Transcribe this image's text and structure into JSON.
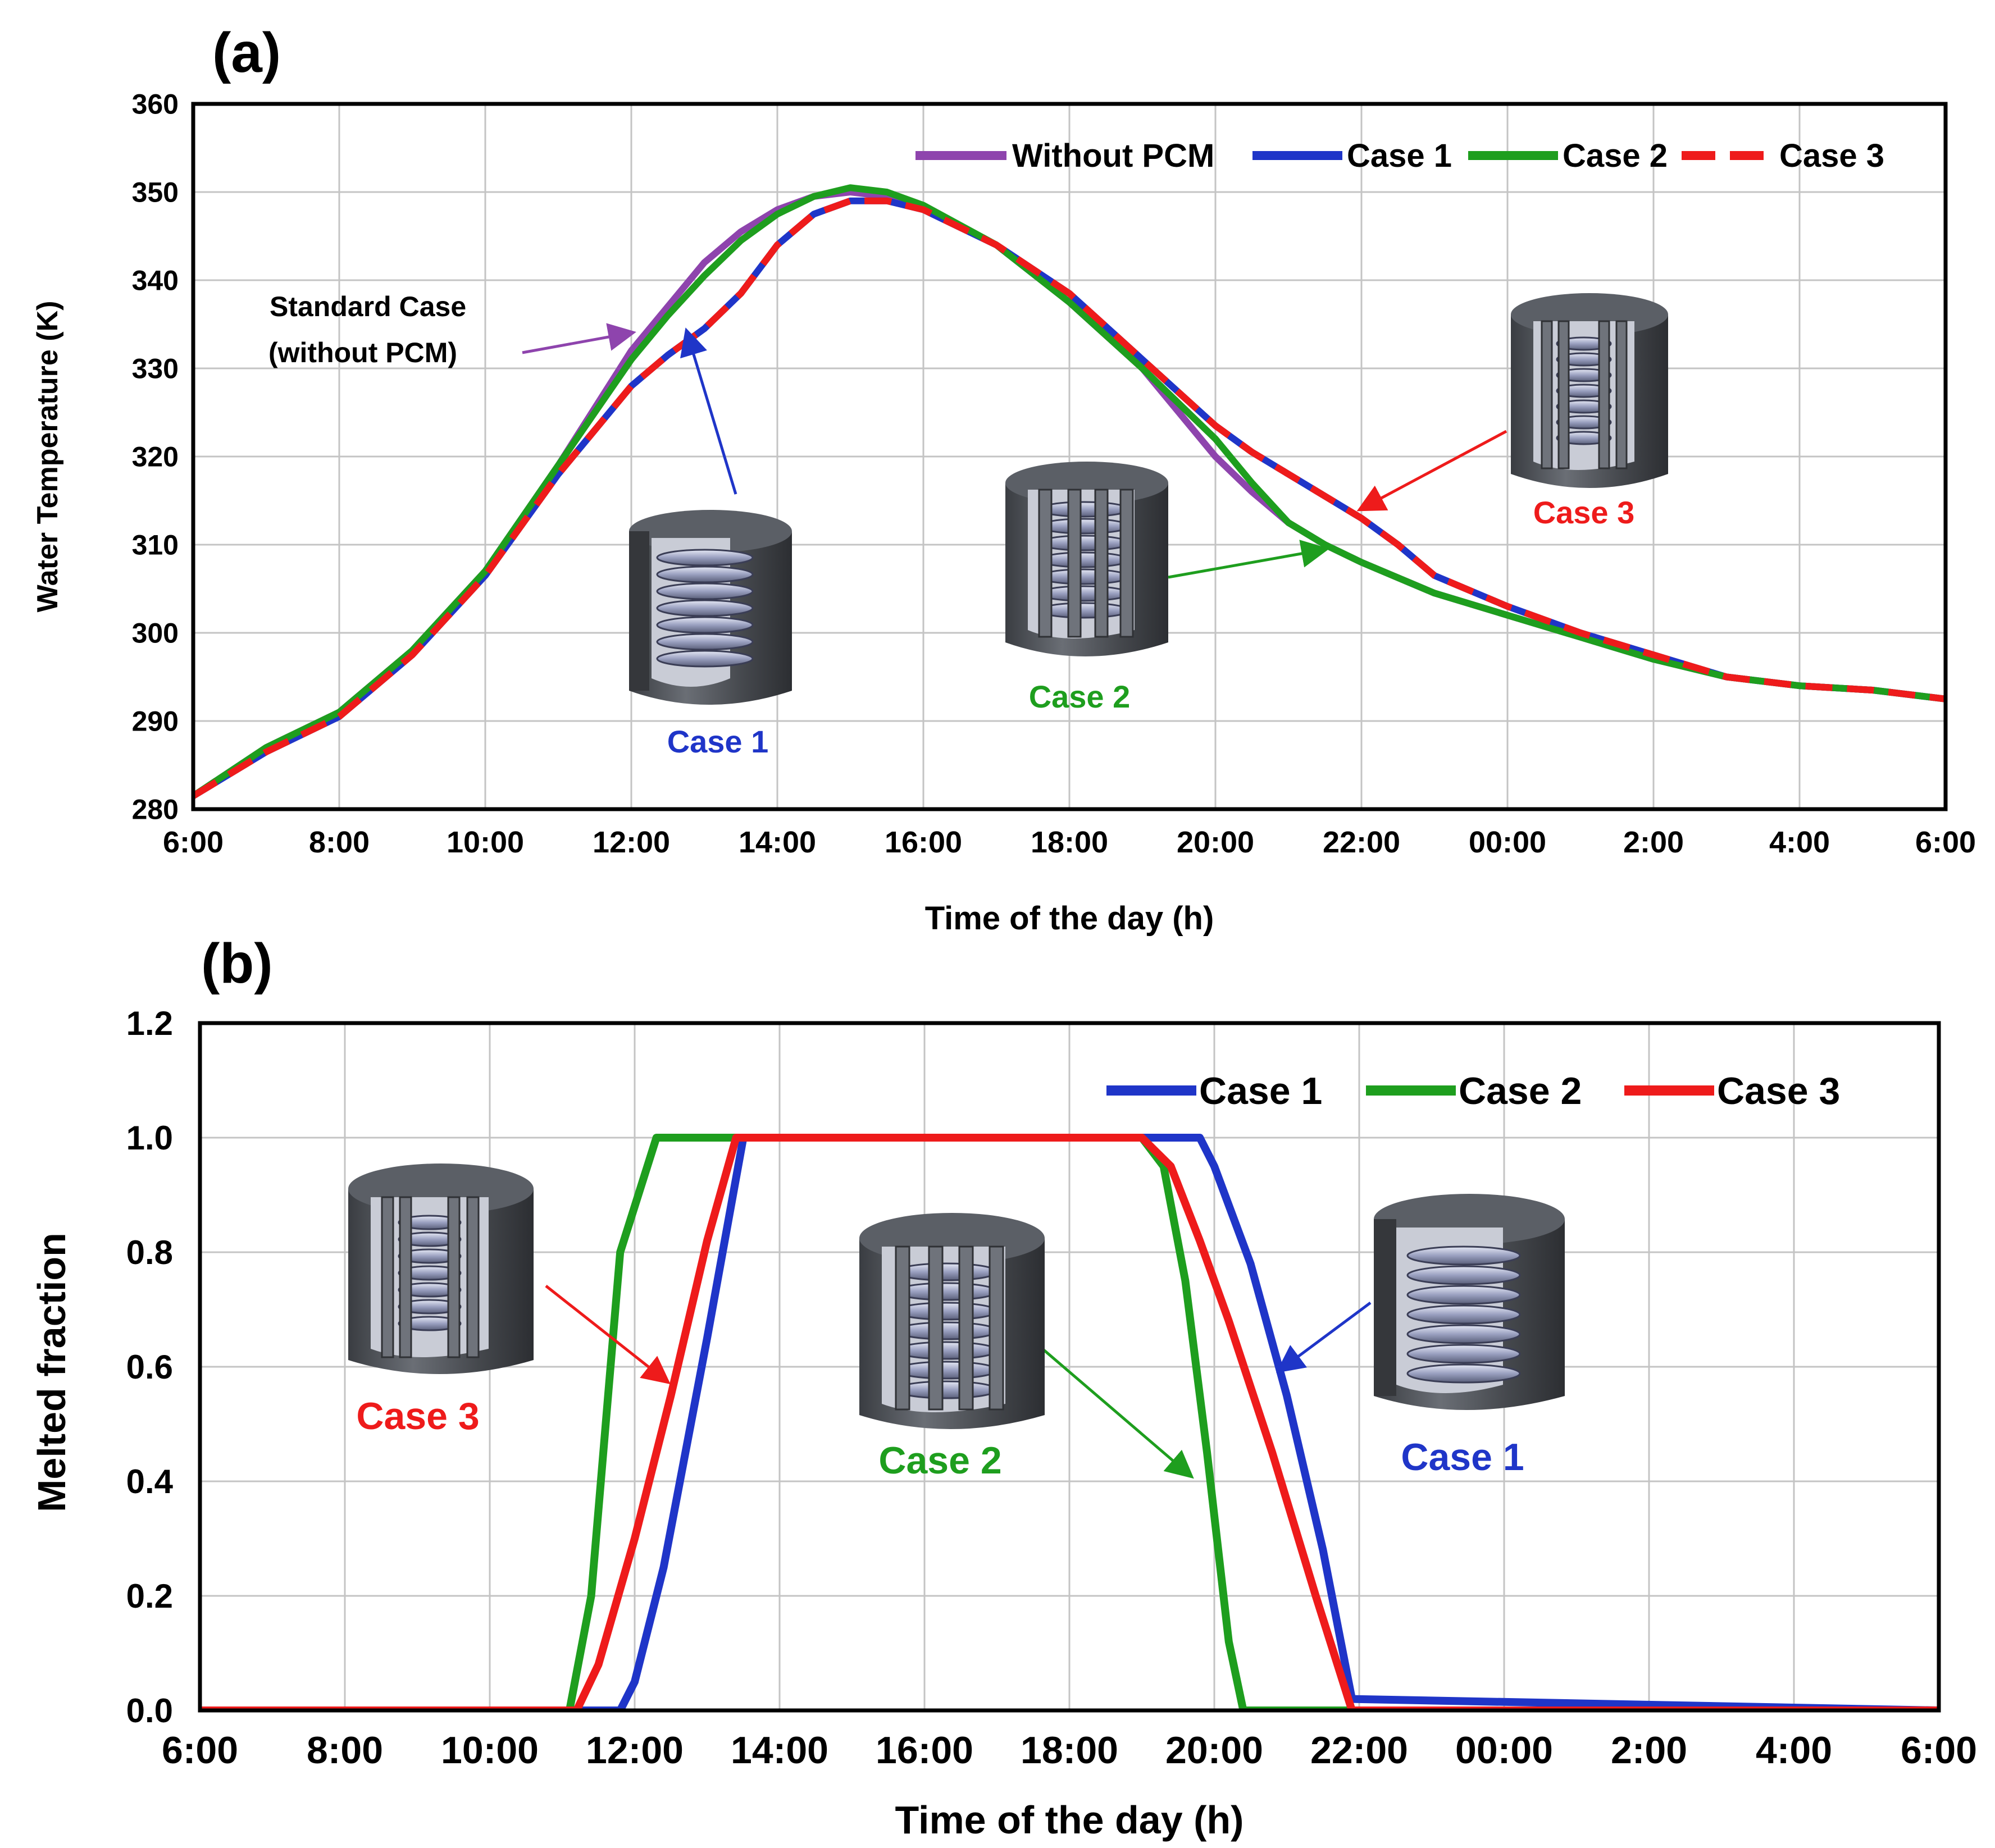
{
  "chart_data": [
    {
      "panel": "(a)",
      "type": "line",
      "title": "",
      "xlabel": "Time of the day (h)",
      "ylabel": "Water Temperature (K)",
      "xlim": [
        6,
        30
      ],
      "ylim": [
        280,
        360
      ],
      "x_ticks": [
        "6:00",
        "8:00",
        "10:00",
        "12:00",
        "14:00",
        "16:00",
        "18:00",
        "20:00",
        "22:00",
        "00:00",
        "2:00",
        "4:00",
        "6:00"
      ],
      "y_ticks": [
        "280",
        "290",
        "300",
        "310",
        "320",
        "330",
        "340",
        "350",
        "360"
      ],
      "grid": true,
      "legend": "top-right",
      "series": [
        {
          "name": "Without PCM",
          "color": "#8E44AD",
          "style": "solid",
          "x": [
            6,
            7,
            8,
            9,
            10,
            11,
            12,
            12.5,
            13,
            13.5,
            14,
            14.5,
            15,
            15.5,
            16,
            17,
            18,
            19,
            20,
            20.5,
            21,
            21.5,
            22,
            23,
            24,
            25,
            26,
            27,
            28,
            29,
            30
          ],
          "y": [
            281.5,
            287,
            291,
            298,
            307,
            319,
            332,
            337,
            342,
            345.5,
            348,
            349.5,
            350,
            349.5,
            348,
            344,
            337.5,
            330,
            320,
            316,
            312.5,
            310,
            308,
            304.5,
            302,
            299.5,
            297,
            295,
            294,
            293.5,
            292.5
          ]
        },
        {
          "name": "Case 1",
          "color": "#1F35C8",
          "style": "solid",
          "x": [
            6,
            7,
            8,
            9,
            10,
            11,
            12,
            12.5,
            13,
            13.5,
            14,
            14.5,
            15,
            15.5,
            16,
            17,
            18,
            19,
            20,
            20.5,
            21,
            21.5,
            22,
            22.5,
            23,
            24,
            25,
            26,
            27,
            28,
            29,
            30
          ],
          "y": [
            281.5,
            286.5,
            290.5,
            297.5,
            306.5,
            318,
            328,
            331.5,
            334.5,
            338.5,
            344,
            347.5,
            349,
            349,
            348,
            344,
            338.5,
            331,
            323.5,
            320.5,
            318,
            315.5,
            313,
            310,
            306.5,
            303,
            300,
            297.5,
            295,
            294,
            293.5,
            292.5
          ]
        },
        {
          "name": "Case 2",
          "color": "#1E9E1E",
          "style": "solid",
          "x": [
            6,
            7,
            8,
            9,
            10,
            11,
            12,
            12.5,
            13,
            13.5,
            14,
            14.5,
            15,
            15.5,
            16,
            17,
            18,
            19,
            20,
            20.5,
            21,
            21.5,
            22,
            23,
            24,
            25,
            26,
            27,
            28,
            29,
            30
          ],
          "y": [
            281.5,
            287,
            291,
            298,
            307,
            319,
            331,
            336,
            340.5,
            344.5,
            347.5,
            349.5,
            350.5,
            350,
            348.5,
            344,
            337.5,
            330,
            322,
            317,
            312.5,
            310,
            308,
            304.5,
            302,
            299.5,
            297,
            295,
            294,
            293.5,
            292.5
          ]
        },
        {
          "name": "Case 3",
          "color": "#EE1B1B",
          "style": "dashed",
          "x": [
            6,
            7,
            8,
            9,
            10,
            11,
            12,
            12.5,
            13,
            13.5,
            14,
            14.5,
            15,
            15.5,
            16,
            17,
            18,
            19,
            20,
            20.5,
            21,
            21.5,
            22,
            22.5,
            23,
            24,
            25,
            26,
            27,
            28,
            29,
            30
          ],
          "y": [
            281.5,
            286.5,
            290.5,
            297.5,
            306.5,
            318,
            328,
            331.5,
            334.5,
            338.5,
            344,
            347.5,
            349,
            349,
            348,
            344,
            338.5,
            331,
            323.5,
            320.5,
            318,
            315.5,
            313,
            310,
            306.5,
            303,
            300,
            297.5,
            295,
            294,
            293.5,
            292.5
          ]
        }
      ],
      "annotations": [
        {
          "text": "Standard Case",
          "color": "#000000"
        },
        {
          "text": "(without PCM)",
          "color": "#000000"
        },
        {
          "text": "Case 1",
          "color": "#1F35C8"
        },
        {
          "text": "Case 2",
          "color": "#1E9E1E"
        },
        {
          "text": "Case 3",
          "color": "#EE1B1B"
        }
      ]
    },
    {
      "panel": "(b)",
      "type": "line",
      "title": "",
      "xlabel": "Time of the day (h)",
      "ylabel": "Melted  fraction",
      "xlim": [
        6,
        30
      ],
      "ylim": [
        0,
        1.2
      ],
      "x_ticks": [
        "6:00",
        "8:00",
        "10:00",
        "12:00",
        "14:00",
        "16:00",
        "18:00",
        "20:00",
        "22:00",
        "00:00",
        "2:00",
        "4:00",
        "6:00"
      ],
      "y_ticks": [
        "0.0",
        "0.2",
        "0.4",
        "0.6",
        "0.8",
        "1.0",
        "1.2"
      ],
      "grid": true,
      "legend": "top-right",
      "series": [
        {
          "name": "Case 1",
          "color": "#1F35C8",
          "x": [
            6,
            11.8,
            12.0,
            12.4,
            13.0,
            13.5,
            19.5,
            19.8,
            20.0,
            20.5,
            21.0,
            21.5,
            21.9,
            30
          ],
          "y": [
            0,
            0,
            0.05,
            0.25,
            0.65,
            1.0,
            1.0,
            1.0,
            0.95,
            0.78,
            0.55,
            0.28,
            0.02,
            0
          ]
        },
        {
          "name": "Case 2",
          "color": "#1E9E1E",
          "x": [
            6,
            11.1,
            11.4,
            11.8,
            12.3,
            19.0,
            19.3,
            19.6,
            19.9,
            20.2,
            20.4,
            30
          ],
          "y": [
            0,
            0,
            0.2,
            0.8,
            1.0,
            1.0,
            0.95,
            0.75,
            0.45,
            0.12,
            0,
            0
          ]
        },
        {
          "name": "Case 3",
          "color": "#EE1B1B",
          "x": [
            6,
            11.2,
            11.5,
            12.0,
            12.5,
            13.0,
            13.4,
            19.0,
            19.4,
            19.8,
            20.2,
            20.8,
            21.4,
            21.9,
            30
          ],
          "y": [
            0,
            0,
            0.08,
            0.3,
            0.55,
            0.82,
            1.0,
            1.0,
            0.95,
            0.82,
            0.68,
            0.45,
            0.2,
            0,
            0
          ]
        }
      ],
      "annotations": [
        {
          "text": "Case 1",
          "color": "#1F35C8"
        },
        {
          "text": "Case 2",
          "color": "#1E9E1E"
        },
        {
          "text": "Case 3",
          "color": "#EE1B1B"
        }
      ]
    }
  ]
}
